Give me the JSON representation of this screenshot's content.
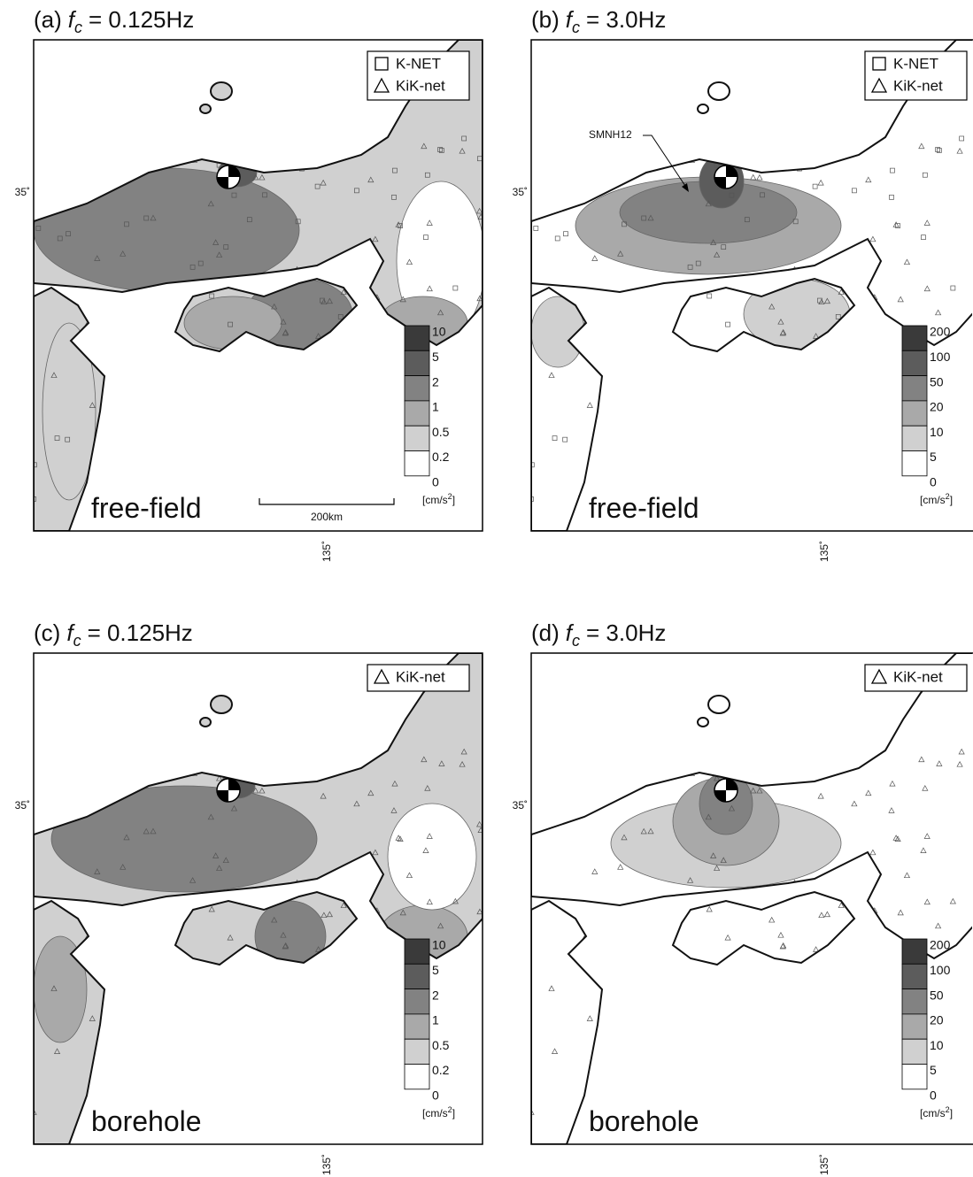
{
  "panels": [
    {
      "label": "(a)",
      "symbol": "f",
      "subscript": "c",
      "frequency": "= 0.125Hz",
      "legend": [
        "K-NET",
        "KiK-net"
      ],
      "colorbar": {
        "levels": [
          10,
          5,
          2,
          1,
          0.5,
          0.2,
          0
        ],
        "colors": [
          "#3a3a3a",
          "#5c5c5c",
          "#828282",
          "#a9a9a9",
          "#d0d0d0",
          "#ffffff"
        ],
        "unit": "[cm/s",
        "unit_sup": "2",
        "unit_end": "]"
      },
      "site": "free-field",
      "lat_label": "35˚",
      "lon_label": "135˚",
      "scale_label": "200km"
    },
    {
      "label": "(b)",
      "symbol": "f",
      "subscript": "c",
      "frequency": "= 3.0Hz",
      "legend": [
        "K-NET",
        "KiK-net"
      ],
      "colorbar": {
        "levels": [
          200,
          100,
          50,
          20,
          10,
          5,
          0
        ],
        "colors": [
          "#3a3a3a",
          "#5c5c5c",
          "#828282",
          "#a9a9a9",
          "#d0d0d0",
          "#ffffff"
        ],
        "unit": "[cm/s",
        "unit_sup": "2",
        "unit_end": "]"
      },
      "site": "free-field",
      "lat_label": "35˚",
      "lon_label": "135˚",
      "annotation": "SMNH12"
    },
    {
      "label": "(c)",
      "symbol": "f",
      "subscript": "c",
      "frequency": "= 0.125Hz",
      "legend": [
        "KiK-net"
      ],
      "colorbar": {
        "levels": [
          10,
          5,
          2,
          1,
          0.5,
          0.2,
          0
        ],
        "colors": [
          "#3a3a3a",
          "#5c5c5c",
          "#828282",
          "#a9a9a9",
          "#d0d0d0",
          "#ffffff"
        ],
        "unit": "[cm/s",
        "unit_sup": "2",
        "unit_end": "]"
      },
      "site": "borehole",
      "lat_label": "35˚",
      "lon_label": "135˚"
    },
    {
      "label": "(d)",
      "symbol": "f",
      "subscript": "c",
      "frequency": "= 3.0Hz",
      "legend": [
        "KiK-net"
      ],
      "colorbar": {
        "levels": [
          200,
          100,
          50,
          20,
          10,
          5,
          0
        ],
        "colors": [
          "#3a3a3a",
          "#5c5c5c",
          "#828282",
          "#a9a9a9",
          "#d0d0d0",
          "#ffffff"
        ],
        "unit": "[cm/s",
        "unit_sup": "2",
        "unit_end": "]"
      },
      "site": "borehole",
      "lat_label": "35˚",
      "lon_label": "135˚"
    }
  ]
}
